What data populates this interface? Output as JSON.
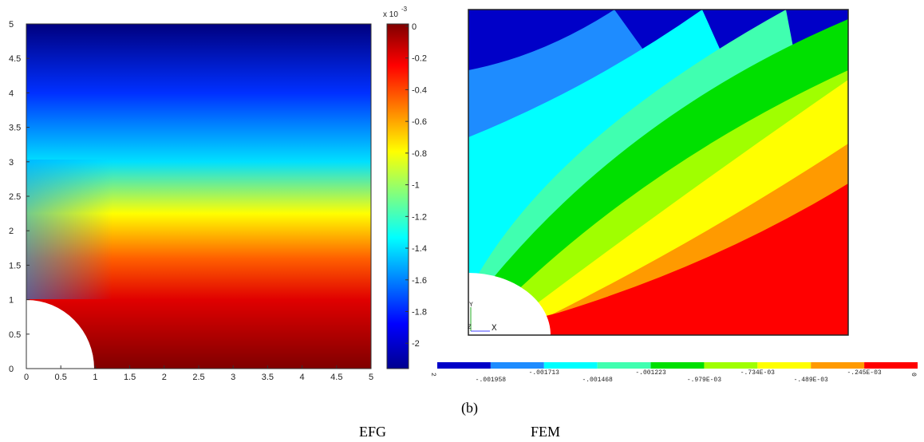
{
  "chart_data": [
    {
      "type": "heatmap",
      "xlim": [
        0,
        5
      ],
      "ylim": [
        0,
        5
      ],
      "xticks": [
        0,
        0.5,
        1,
        1.5,
        2,
        2.5,
        3,
        3.5,
        4,
        4.5,
        5
      ],
      "yticks": [
        0,
        0.5,
        1,
        1.5,
        2,
        2.5,
        3,
        3.5,
        4,
        4.5,
        5
      ],
      "colorbar": {
        "lim": [
          -2.16,
          0.015
        ],
        "ticks": [
          0,
          -0.2,
          -0.4,
          -0.6,
          -0.8,
          -1,
          -1.2,
          -1.4,
          -1.6,
          -1.8,
          -2
        ],
        "multiplier": "x 10",
        "multiplier_exponent": "-3"
      }
    },
    {
      "type": "contour",
      "colors": [
        "#0000c8",
        "#1e8cff",
        "#00ffff",
        "#40ffb0",
        "#00e000",
        "#a0ff00",
        "#ffff00",
        "#ff9a00",
        "#ff0000"
      ],
      "legend_labels": [
        "2",
        "-.001958",
        "-.001713",
        "-.001468",
        "-.001223",
        "-.979E-03",
        "-.734E-03",
        "-.489E-03",
        "-.245E-03",
        "0"
      ],
      "triad_labels": [
        "Y",
        "Z",
        "X"
      ],
      "caption": "(b)"
    }
  ],
  "captions": [
    "EFG",
    "FEM"
  ]
}
